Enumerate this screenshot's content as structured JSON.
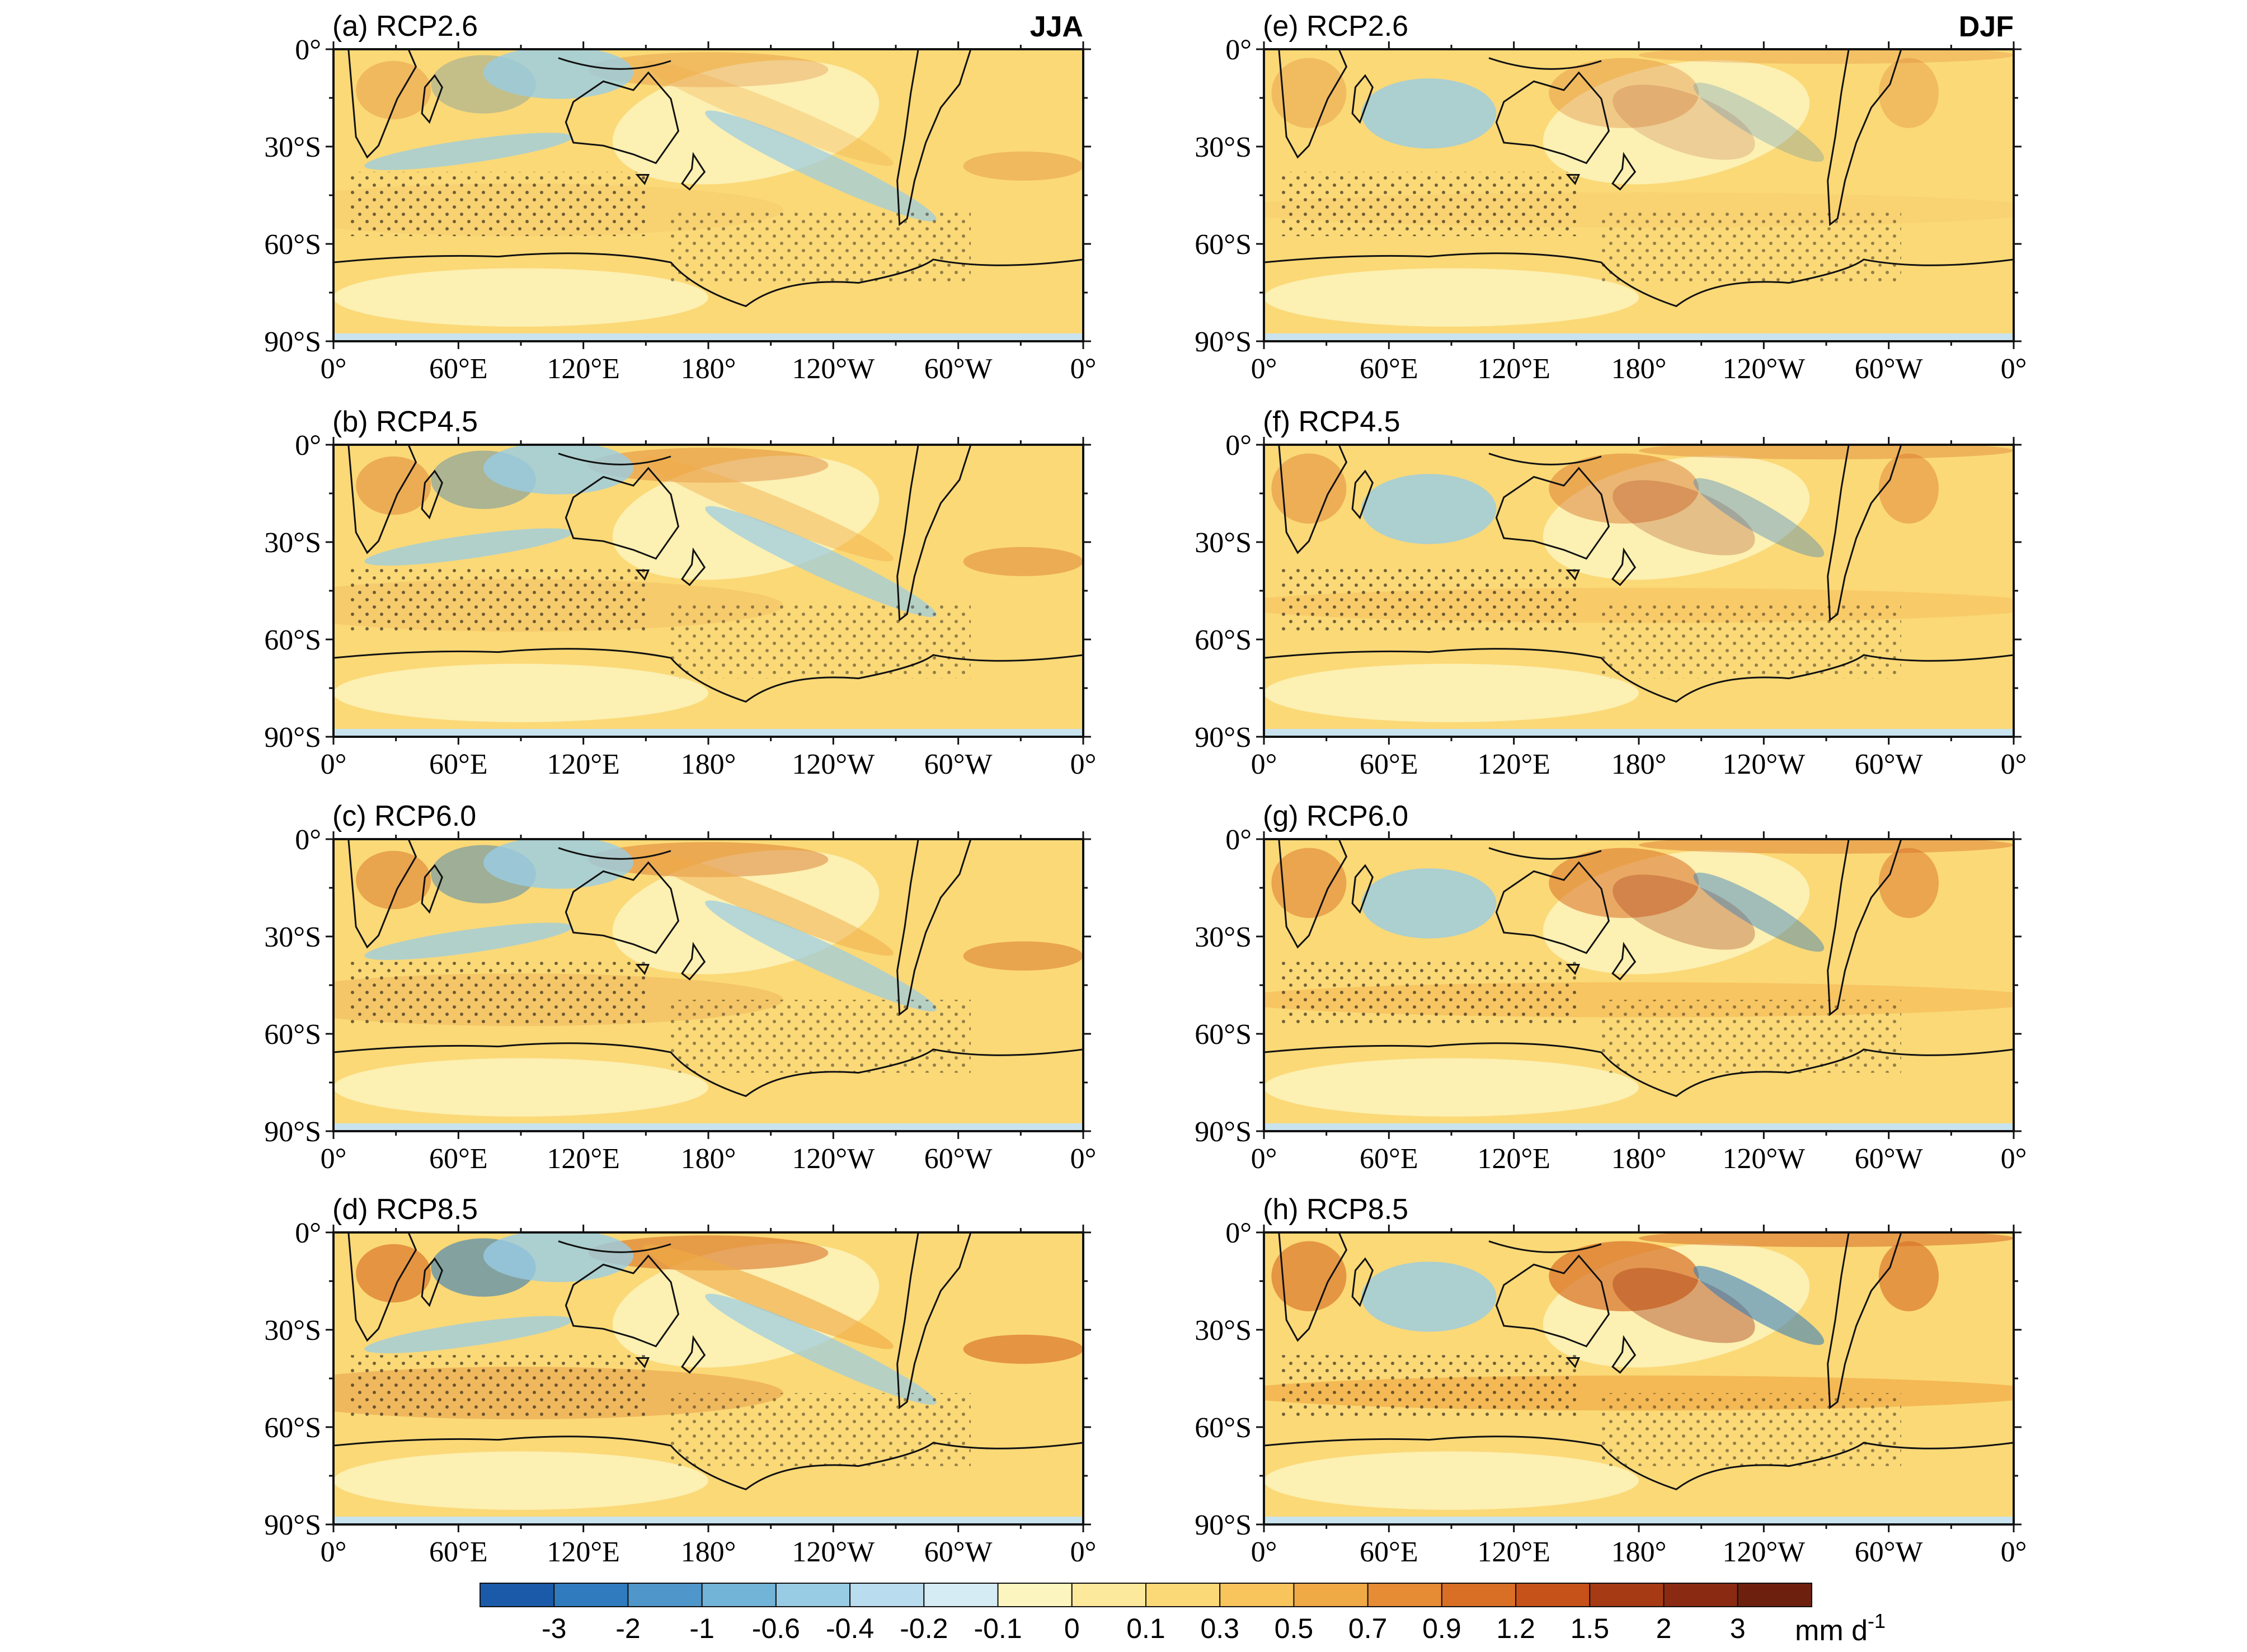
{
  "season_labels": {
    "left": "JJA",
    "right": "DJF"
  },
  "lat_labels": [
    "0°",
    "30°S",
    "60°S",
    "90°S"
  ],
  "lon_labels": [
    "0°",
    "60°E",
    "120°E",
    "180°",
    "120°W",
    "60°W",
    "0°"
  ],
  "panels": [
    {
      "id": "a",
      "title": "(a) RCP2.6",
      "column": "left",
      "row": 0,
      "intensity": 0.6
    },
    {
      "id": "b",
      "title": "(b) RCP4.5",
      "column": "left",
      "row": 1,
      "intensity": 0.85
    },
    {
      "id": "c",
      "title": "(c) RCP6.0",
      "column": "left",
      "row": 2,
      "intensity": 1.0
    },
    {
      "id": "d",
      "title": "(d) RCP8.5",
      "column": "left",
      "row": 3,
      "intensity": 1.3
    },
    {
      "id": "e",
      "title": "(e) RCP2.6",
      "column": "right",
      "row": 0,
      "intensity": 0.6
    },
    {
      "id": "f",
      "title": "(f) RCP4.5",
      "column": "right",
      "row": 1,
      "intensity": 0.9
    },
    {
      "id": "g",
      "title": "(g) RCP6.0",
      "column": "right",
      "row": 2,
      "intensity": 1.1
    },
    {
      "id": "h",
      "title": "(h) RCP8.5",
      "column": "right",
      "row": 3,
      "intensity": 1.4
    }
  ],
  "colorbar": {
    "labels": [
      "-3",
      "-2",
      "-1",
      "-0.6",
      "-0.4",
      "-0.2",
      "-0.1",
      "0",
      "0.1",
      "0.3",
      "0.5",
      "0.7",
      "0.9",
      "1.2",
      "1.5",
      "2",
      "3"
    ],
    "unit": "mm d",
    "unit_exp": "-1",
    "colors": [
      "#1a5aa8",
      "#2f7bbd",
      "#4f97cb",
      "#72b3d8",
      "#98cce5",
      "#b9ddee",
      "#d6ecf4",
      "#fdf5c0",
      "#fde99b",
      "#fbd977",
      "#f7c55c",
      "#f0aa45",
      "#e58c34",
      "#d86f25",
      "#c65119",
      "#a63a15",
      "#8a2a12",
      "#6e200f"
    ]
  },
  "map_fill_colors": {
    "wet_strong": "#a63a15",
    "wet": "#d86f25",
    "wet_mild": "#f0aa45",
    "neutral": "#fbd977",
    "light": "#fdf5c0",
    "dry": "#98cce5",
    "dry_strong": "#2f7bbd",
    "polar_band": "#c9e3ef"
  }
}
